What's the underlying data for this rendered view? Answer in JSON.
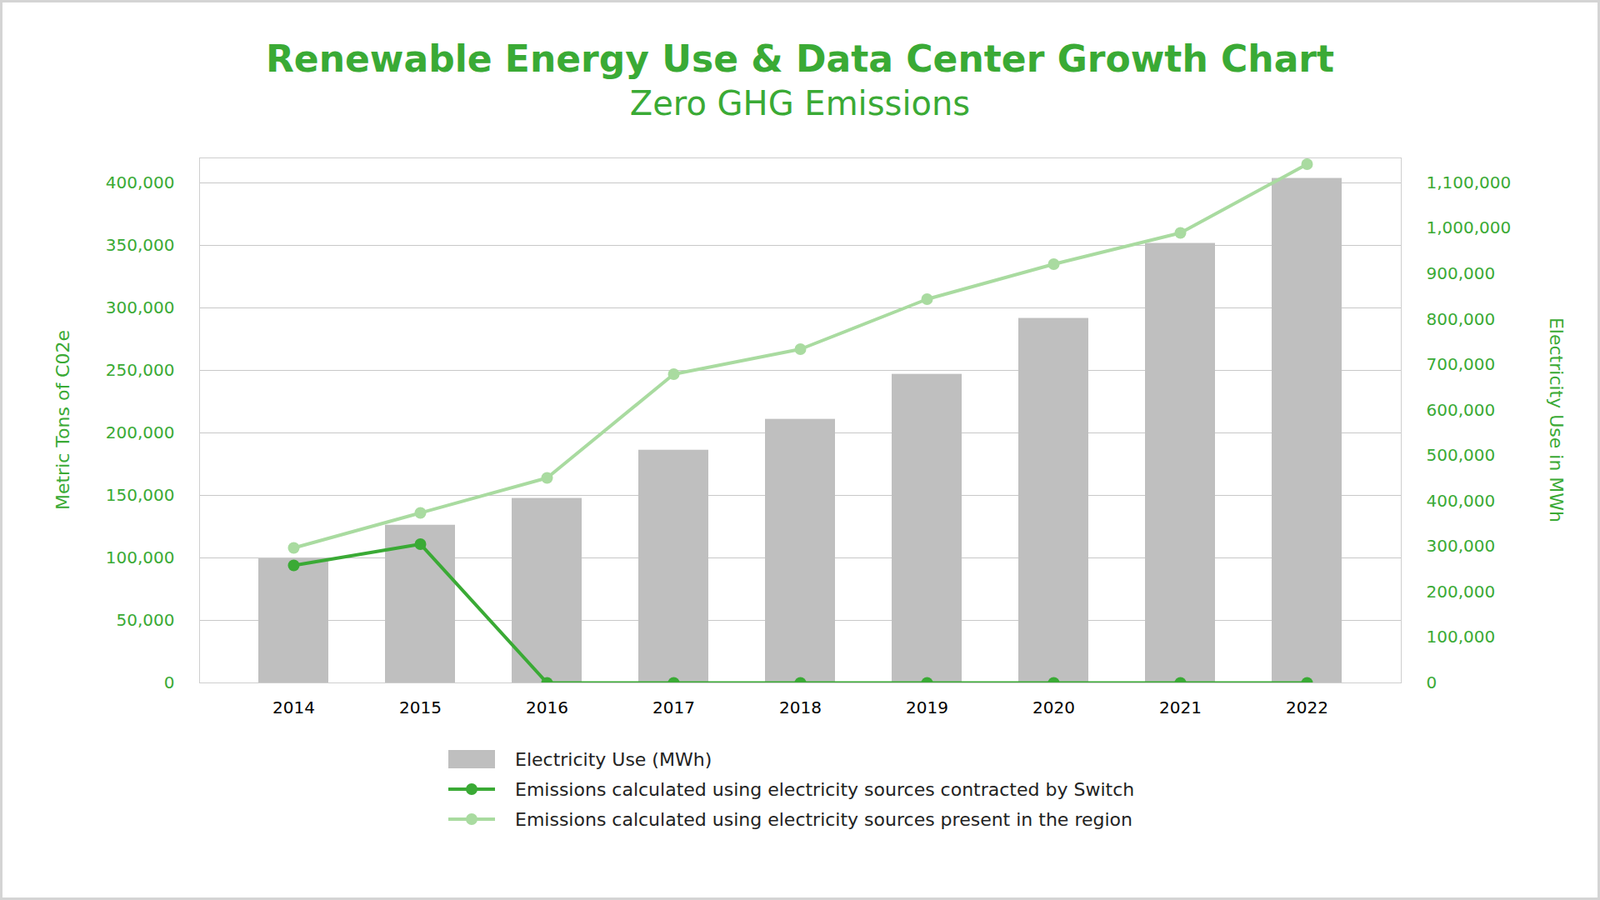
{
  "chart_data": {
    "type": "bar",
    "title": "Renewable Energy Use & Data Center Growth Chart",
    "subtitle": "Zero GHG Emissions",
    "y_label": "Metric Tons of C02e",
    "y2_label": "Electricity Use in MWh",
    "categories": [
      "2014",
      "2015",
      "2016",
      "2017",
      "2018",
      "2019",
      "2020",
      "2021",
      "2022"
    ],
    "ylim": [
      0,
      420000
    ],
    "yticks": [
      0,
      {
        "value": 50000,
        "label": "50,000"
      },
      {
        "value": 100000,
        "label": "100,000"
      },
      {
        "value": 150000,
        "label": "150,000"
      },
      {
        "value": 200000,
        "label": "200,000"
      },
      {
        "value": 250000,
        "label": "250,000"
      },
      {
        "value": 300000,
        "label": "300,000"
      },
      {
        "value": 350000,
        "label": "350,000"
      },
      {
        "value": 400000,
        "label": "400,000"
      }
    ],
    "y2lim": [
      0,
      1155000
    ],
    "y2ticks": [
      0,
      {
        "value": 100000,
        "label": "100,000"
      },
      {
        "value": 200000,
        "label": "200,000"
      },
      {
        "value": 300000,
        "label": "300,000"
      },
      {
        "value": 400000,
        "label": "400,000"
      },
      {
        "value": 500000,
        "label": "500,000"
      },
      {
        "value": 600000,
        "label": "600,000"
      },
      {
        "value": 700000,
        "label": "700,000"
      },
      {
        "value": 800000,
        "label": "800,000"
      },
      {
        "value": 900000,
        "label": "900,000"
      },
      {
        "value": 1000000,
        "label": "1,000,000"
      },
      {
        "value": 1100000,
        "label": "1,100,000"
      }
    ],
    "grid": true,
    "legend": "bottom",
    "series": [
      {
        "name": "Electricity Use (MWh)",
        "type": "bar",
        "axis": "y2",
        "color": "#bfbfbf",
        "values": [
          273000,
          347000,
          406000,
          512000,
          580000,
          679000,
          802000,
          967000,
          1110000
        ]
      },
      {
        "name": "Emissions calculated using electricity sources contracted by Switch",
        "type": "line",
        "marker": "circle",
        "color": "#3aaa35",
        "values": [
          94000,
          111000,
          0,
          0,
          0,
          0,
          0,
          0,
          0
        ]
      },
      {
        "name": "Emissions calculated using electricity sources present in the region",
        "type": "line",
        "marker": "circle",
        "color": "#a9dba0",
        "values": [
          108000,
          136000,
          164000,
          247000,
          267000,
          307000,
          335000,
          360000,
          415000
        ]
      }
    ]
  }
}
